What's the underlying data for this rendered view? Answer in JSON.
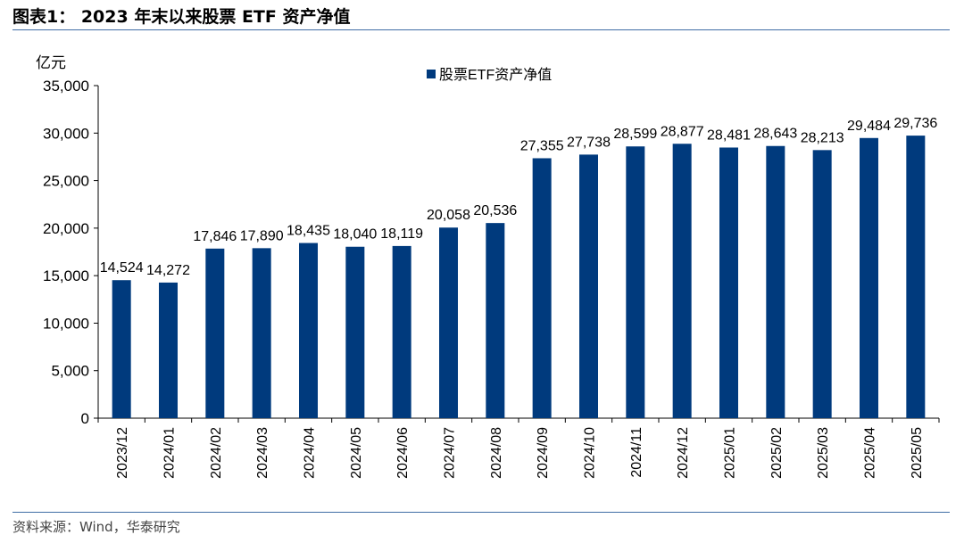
{
  "figure": {
    "title": "图表1： 2023 年末以来股票 ETF 资产净值",
    "source": "资料来源：Wind，华泰研究"
  },
  "colors": {
    "bar": "#003a7d",
    "rule": "#3f6da5"
  },
  "chart_data": {
    "type": "bar",
    "title": "",
    "ylabel": "亿元",
    "xlabel": "",
    "ylim": [
      0,
      35000
    ],
    "yticks": [
      0,
      5000,
      10000,
      15000,
      20000,
      25000,
      30000,
      35000
    ],
    "ytick_labels": [
      "0",
      "5,000",
      "10,000",
      "15,000",
      "20,000",
      "25,000",
      "30,000",
      "35,000"
    ],
    "grid": false,
    "legend_position": "top-center",
    "categories": [
      "2023/12",
      "2024/01",
      "2024/02",
      "2024/03",
      "2024/04",
      "2024/05",
      "2024/06",
      "2024/07",
      "2024/08",
      "2024/09",
      "2024/10",
      "2024/11",
      "2024/12",
      "2025/01",
      "2025/02",
      "2025/03",
      "2025/04",
      "2025/05"
    ],
    "series": [
      {
        "name": "股票ETF资产净值",
        "values": [
          14524,
          14272,
          17846,
          17890,
          18435,
          18040,
          18119,
          20058,
          20536,
          27355,
          27738,
          28599,
          28877,
          28481,
          28643,
          28213,
          29484,
          29736
        ],
        "data_labels": [
          "14,524",
          "14,272",
          "17,846",
          "17,890",
          "18,435",
          "18,040",
          "18,119",
          "20,058",
          "20,536",
          "27,355",
          "27,738",
          "28,599",
          "28,877",
          "28,481",
          "28,643",
          "28,213",
          "29,484",
          "29,736"
        ]
      }
    ]
  }
}
